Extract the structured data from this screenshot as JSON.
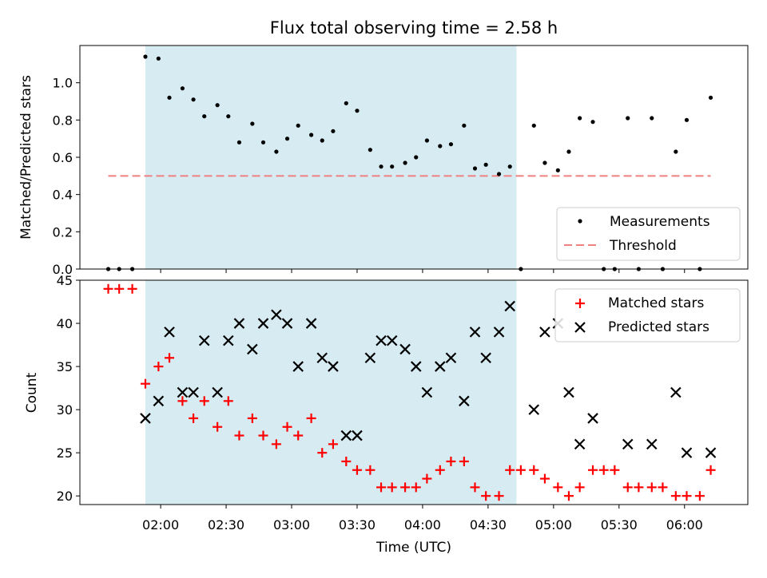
{
  "chart_data": [
    {
      "type": "scatter",
      "title": "Flux total observing time = 2.58 h",
      "ylabel": "Matched/Predicted stars",
      "xlabel": "",
      "ylim": [
        0,
        1.2
      ],
      "yticks": [
        0.0,
        0.2,
        0.4,
        0.6,
        0.8,
        1.0
      ],
      "ytick_labels": [
        "0.0",
        "0.2",
        "0.4",
        "0.6",
        "0.8",
        "1.0"
      ],
      "x_unit": "minutes after 00:00 UTC",
      "xlim": [
        83,
        389
      ],
      "shaded_region": {
        "start": 113,
        "end": 283,
        "color": "#add8e6"
      },
      "threshold": {
        "value": 0.5,
        "x_start": 96,
        "x_end": 372,
        "color": "#f08080"
      },
      "legend": {
        "position": "lower right",
        "entries": [
          {
            "label": "Measurements",
            "marker": "dot",
            "color": "#000000"
          },
          {
            "label": "Threshold",
            "marker": "dashed-line",
            "color": "#f08080"
          }
        ]
      },
      "series": [
        {
          "name": "Measurements",
          "color": "#000000",
          "marker": "dot",
          "points": [
            [
              96,
              0.0
            ],
            [
              101,
              0.0
            ],
            [
              107,
              0.0
            ],
            [
              113,
              1.14
            ],
            [
              119,
              1.13
            ],
            [
              124,
              0.92
            ],
            [
              130,
              0.97
            ],
            [
              135,
              0.91
            ],
            [
              140,
              0.82
            ],
            [
              146,
              0.88
            ],
            [
              151,
              0.82
            ],
            [
              156,
              0.68
            ],
            [
              162,
              0.78
            ],
            [
              167,
              0.68
            ],
            [
              173,
              0.63
            ],
            [
              178,
              0.7
            ],
            [
              183,
              0.77
            ],
            [
              189,
              0.72
            ],
            [
              194,
              0.69
            ],
            [
              199,
              0.74
            ],
            [
              205,
              0.89
            ],
            [
              210,
              0.85
            ],
            [
              216,
              0.64
            ],
            [
              221,
              0.55
            ],
            [
              226,
              0.55
            ],
            [
              232,
              0.57
            ],
            [
              237,
              0.6
            ],
            [
              242,
              0.69
            ],
            [
              248,
              0.66
            ],
            [
              253,
              0.67
            ],
            [
              259,
              0.77
            ],
            [
              264,
              0.54
            ],
            [
              269,
              0.56
            ],
            [
              275,
              0.51
            ],
            [
              280,
              0.55
            ],
            [
              285,
              0.0
            ],
            [
              291,
              0.77
            ],
            [
              296,
              0.57
            ],
            [
              302,
              0.53
            ],
            [
              307,
              0.63
            ],
            [
              312,
              0.81
            ],
            [
              318,
              0.79
            ],
            [
              323,
              0.0
            ],
            [
              328,
              0.0
            ],
            [
              334,
              0.81
            ],
            [
              339,
              0.0
            ],
            [
              345,
              0.81
            ],
            [
              350,
              0.0
            ],
            [
              356,
              0.63
            ],
            [
              361,
              0.8
            ],
            [
              367,
              0.0
            ],
            [
              372,
              0.92
            ]
          ]
        }
      ]
    },
    {
      "type": "scatter",
      "title": "",
      "ylabel": "Count",
      "xlabel": "Time (UTC)",
      "ylim": [
        19,
        45
      ],
      "yticks": [
        20,
        25,
        30,
        35,
        40,
        45
      ],
      "ytick_labels": [
        "20",
        "25",
        "30",
        "35",
        "40",
        "45"
      ],
      "x_unit": "minutes after 00:00 UTC",
      "xlim": [
        83,
        389
      ],
      "xticks": [
        120,
        150,
        180,
        210,
        240,
        270,
        300,
        330,
        360
      ],
      "xtick_labels": [
        "02:00",
        "02:30",
        "03:00",
        "03:30",
        "04:00",
        "04:30",
        "05:00",
        "05:30",
        "06:00"
      ],
      "shaded_region": {
        "start": 113,
        "end": 283,
        "color": "#add8e6"
      },
      "legend": {
        "position": "upper right",
        "entries": [
          {
            "label": "Matched stars",
            "marker": "plus",
            "color": "#ff0000"
          },
          {
            "label": "Predicted stars",
            "marker": "x",
            "color": "#000000"
          }
        ]
      },
      "series": [
        {
          "name": "Matched stars",
          "color": "#ff0000",
          "marker": "plus",
          "points": [
            [
              96,
              44
            ],
            [
              101,
              44
            ],
            [
              107,
              44
            ],
            [
              113,
              33
            ],
            [
              119,
              35
            ],
            [
              124,
              36
            ],
            [
              130,
              31
            ],
            [
              135,
              29
            ],
            [
              140,
              31
            ],
            [
              146,
              28
            ],
            [
              151,
              31
            ],
            [
              156,
              27
            ],
            [
              162,
              29
            ],
            [
              167,
              27
            ],
            [
              173,
              26
            ],
            [
              178,
              28
            ],
            [
              183,
              27
            ],
            [
              189,
              29
            ],
            [
              194,
              25
            ],
            [
              199,
              26
            ],
            [
              205,
              24
            ],
            [
              210,
              23
            ],
            [
              216,
              23
            ],
            [
              221,
              21
            ],
            [
              226,
              21
            ],
            [
              232,
              21
            ],
            [
              237,
              21
            ],
            [
              242,
              22
            ],
            [
              248,
              23
            ],
            [
              253,
              24
            ],
            [
              259,
              24
            ],
            [
              264,
              21
            ],
            [
              269,
              20
            ],
            [
              275,
              20
            ],
            [
              280,
              23
            ],
            [
              285,
              23
            ],
            [
              291,
              23
            ],
            [
              296,
              22
            ],
            [
              302,
              21
            ],
            [
              307,
              20
            ],
            [
              312,
              21
            ],
            [
              318,
              23
            ],
            [
              323,
              23
            ],
            [
              328,
              23
            ],
            [
              334,
              21
            ],
            [
              339,
              21
            ],
            [
              345,
              21
            ],
            [
              350,
              21
            ],
            [
              356,
              20
            ],
            [
              361,
              20
            ],
            [
              367,
              20
            ],
            [
              372,
              23
            ]
          ]
        },
        {
          "name": "Predicted stars",
          "color": "#000000",
          "marker": "x",
          "points": [
            [
              113,
              29
            ],
            [
              119,
              31
            ],
            [
              124,
              39
            ],
            [
              130,
              32
            ],
            [
              135,
              32
            ],
            [
              140,
              38
            ],
            [
              146,
              32
            ],
            [
              151,
              38
            ],
            [
              156,
              40
            ],
            [
              162,
              37
            ],
            [
              167,
              40
            ],
            [
              173,
              41
            ],
            [
              178,
              40
            ],
            [
              183,
              35
            ],
            [
              189,
              40
            ],
            [
              194,
              36
            ],
            [
              199,
              35
            ],
            [
              205,
              27
            ],
            [
              210,
              27
            ],
            [
              216,
              36
            ],
            [
              221,
              38
            ],
            [
              226,
              38
            ],
            [
              232,
              37
            ],
            [
              237,
              35
            ],
            [
              242,
              32
            ],
            [
              248,
              35
            ],
            [
              253,
              36
            ],
            [
              259,
              31
            ],
            [
              264,
              39
            ],
            [
              269,
              36
            ],
            [
              275,
              39
            ],
            [
              280,
              42
            ],
            [
              291,
              30
            ],
            [
              296,
              39
            ],
            [
              302,
              40
            ],
            [
              307,
              32
            ],
            [
              312,
              26
            ],
            [
              318,
              29
            ],
            [
              334,
              26
            ],
            [
              345,
              26
            ],
            [
              356,
              32
            ],
            [
              361,
              25
            ],
            [
              372,
              25
            ]
          ]
        }
      ]
    }
  ]
}
